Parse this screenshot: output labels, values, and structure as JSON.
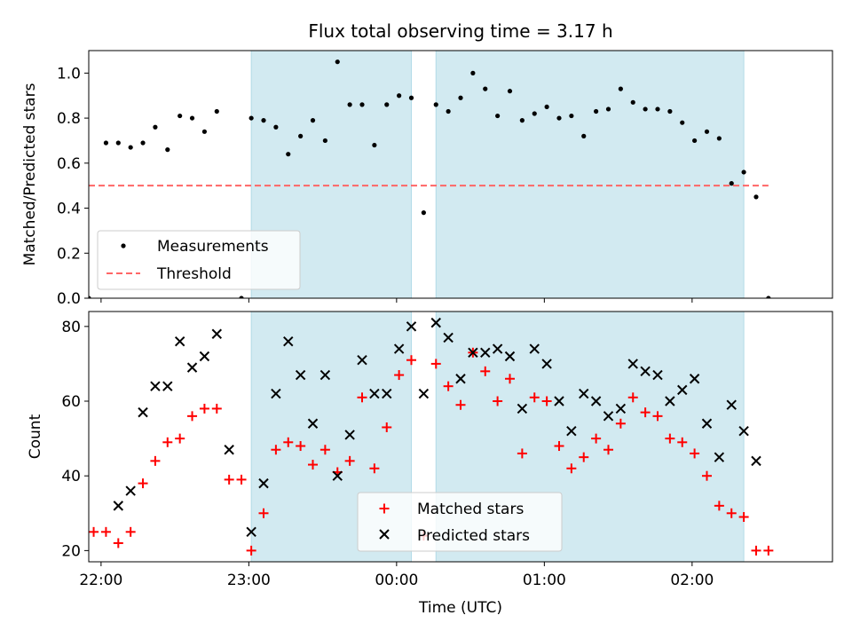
{
  "chart_data": [
    {
      "type": "scatter",
      "title": "Flux total observing time = 3.17 h",
      "ylabel": "Matched/Predicted stars",
      "xlabel": "",
      "ylim": [
        0,
        1.1
      ],
      "yticks": [
        "0.0",
        "0.2",
        "0.4",
        "0.6",
        "0.8",
        "1.0"
      ],
      "xlim": [
        "21:55",
        "02:57"
      ],
      "grid": false,
      "legend": {
        "placement": "lower-left",
        "entries": [
          "Measurements",
          "Threshold"
        ]
      },
      "shaded_intervals": [
        [
          "23:01",
          "00:06"
        ],
        [
          "00:16",
          "02:21"
        ]
      ],
      "shade_color": "#add8e6",
      "threshold": {
        "name": "Threshold",
        "value": 0.5,
        "x": [
          "21:55",
          "02:31"
        ],
        "color": "#ff6666",
        "style": "dashed"
      },
      "series": [
        {
          "name": "Measurements",
          "color": "#000000",
          "marker": "dot",
          "x": [
            "21:52",
            "21:55",
            "22:02",
            "22:07",
            "22:12",
            "22:17",
            "22:22",
            "22:27",
            "22:32",
            "22:37",
            "22:42",
            "22:47",
            "22:57",
            "23:01",
            "23:06",
            "23:11",
            "23:16",
            "23:21",
            "23:26",
            "23:31",
            "23:36",
            "23:41",
            "23:46",
            "23:51",
            "23:56",
            "00:01",
            "00:06",
            "00:11",
            "00:16",
            "00:21",
            "00:26",
            "00:31",
            "00:36",
            "00:41",
            "00:46",
            "00:51",
            "00:56",
            "01:01",
            "01:06",
            "01:11",
            "01:16",
            "01:21",
            "01:26",
            "01:31",
            "01:36",
            "01:41",
            "01:46",
            "01:51",
            "01:56",
            "02:01",
            "02:06",
            "02:11",
            "02:16",
            "02:21",
            "02:26",
            "02:31"
          ],
          "y": [
            0.0,
            0.0,
            0.69,
            0.69,
            0.67,
            0.69,
            0.76,
            0.66,
            0.81,
            0.8,
            0.74,
            0.83,
            0.0,
            0.8,
            0.79,
            0.76,
            0.64,
            0.72,
            0.79,
            0.7,
            1.05,
            0.86,
            0.86,
            0.68,
            0.86,
            0.9,
            0.89,
            0.38,
            0.86,
            0.83,
            0.89,
            1.0,
            0.93,
            0.81,
            0.92,
            0.79,
            0.82,
            0.85,
            0.8,
            0.81,
            0.72,
            0.83,
            0.84,
            0.93,
            0.87,
            0.84,
            0.84,
            0.83,
            0.78,
            0.7,
            0.74,
            0.71,
            0.51,
            0.56,
            0.45,
            0.0
          ]
        }
      ]
    },
    {
      "type": "scatter",
      "title": "",
      "ylabel": "Count",
      "xlabel": "Time (UTC)",
      "ylim": [
        17,
        84
      ],
      "yticks": [
        "20",
        "40",
        "60",
        "80"
      ],
      "xticks": [
        "22:00",
        "23:00",
        "00:00",
        "01:00",
        "02:00"
      ],
      "xlim": [
        "21:55",
        "02:57"
      ],
      "grid": false,
      "legend": {
        "placement": "lower-center",
        "entries": [
          "Matched stars",
          "Predicted stars"
        ]
      },
      "shaded_intervals": [
        [
          "23:01",
          "00:06"
        ],
        [
          "00:16",
          "02:21"
        ]
      ],
      "shade_color": "#add8e6",
      "series": [
        {
          "name": "Matched stars",
          "color": "#ff0000",
          "marker": "plus",
          "x": [
            "21:57",
            "22:02",
            "22:07",
            "22:12",
            "22:17",
            "22:22",
            "22:27",
            "22:32",
            "22:37",
            "22:42",
            "22:47",
            "22:52",
            "22:57",
            "23:01",
            "23:06",
            "23:11",
            "23:16",
            "23:21",
            "23:26",
            "23:31",
            "23:36",
            "23:41",
            "23:46",
            "23:51",
            "23:56",
            "00:01",
            "00:06",
            "00:11",
            "00:16",
            "00:21",
            "00:26",
            "00:31",
            "00:36",
            "00:41",
            "00:46",
            "00:51",
            "00:56",
            "01:01",
            "01:06",
            "01:11",
            "01:16",
            "01:21",
            "01:26",
            "01:31",
            "01:36",
            "01:41",
            "01:46",
            "01:51",
            "01:56",
            "02:01",
            "02:06",
            "02:11",
            "02:16",
            "02:21",
            "02:26",
            "02:31"
          ],
          "y": [
            25,
            25,
            22,
            25,
            38,
            44,
            49,
            50,
            56,
            58,
            58,
            39,
            39,
            20,
            30,
            47,
            49,
            48,
            43,
            47,
            41,
            44,
            61,
            42,
            53,
            67,
            71,
            24,
            70,
            64,
            59,
            73,
            68,
            60,
            66,
            46,
            61,
            60,
            48,
            42,
            45,
            50,
            47,
            54,
            61,
            57,
            56,
            50,
            49,
            46,
            40,
            32,
            30,
            29,
            20,
            20
          ]
        },
        {
          "name": "Predicted stars",
          "color": "#000000",
          "marker": "x",
          "x": [
            "22:07",
            "22:12",
            "22:17",
            "22:22",
            "22:27",
            "22:32",
            "22:37",
            "22:42",
            "22:47",
            "22:52",
            "23:01",
            "23:06",
            "23:11",
            "23:16",
            "23:21",
            "23:26",
            "23:31",
            "23:36",
            "23:41",
            "23:46",
            "23:51",
            "23:56",
            "00:01",
            "00:06",
            "00:11",
            "00:16",
            "00:21",
            "00:26",
            "00:31",
            "00:36",
            "00:41",
            "00:46",
            "00:51",
            "00:56",
            "01:01",
            "01:06",
            "01:11",
            "01:16",
            "01:21",
            "01:26",
            "01:31",
            "01:36",
            "01:41",
            "01:46",
            "01:51",
            "01:56",
            "02:01",
            "02:06",
            "02:11",
            "02:16",
            "02:21",
            "02:26"
          ],
          "y": [
            32,
            36,
            57,
            64,
            64,
            76,
            69,
            72,
            78,
            47,
            25,
            38,
            62,
            76,
            67,
            54,
            67,
            40,
            51,
            71,
            62,
            62,
            74,
            80,
            62,
            81,
            77,
            66,
            73,
            73,
            74,
            72,
            58,
            74,
            70,
            60,
            52,
            62,
            60,
            56,
            58,
            70,
            68,
            67,
            60,
            63,
            66,
            54,
            45,
            59,
            52,
            44
          ]
        }
      ]
    }
  ]
}
